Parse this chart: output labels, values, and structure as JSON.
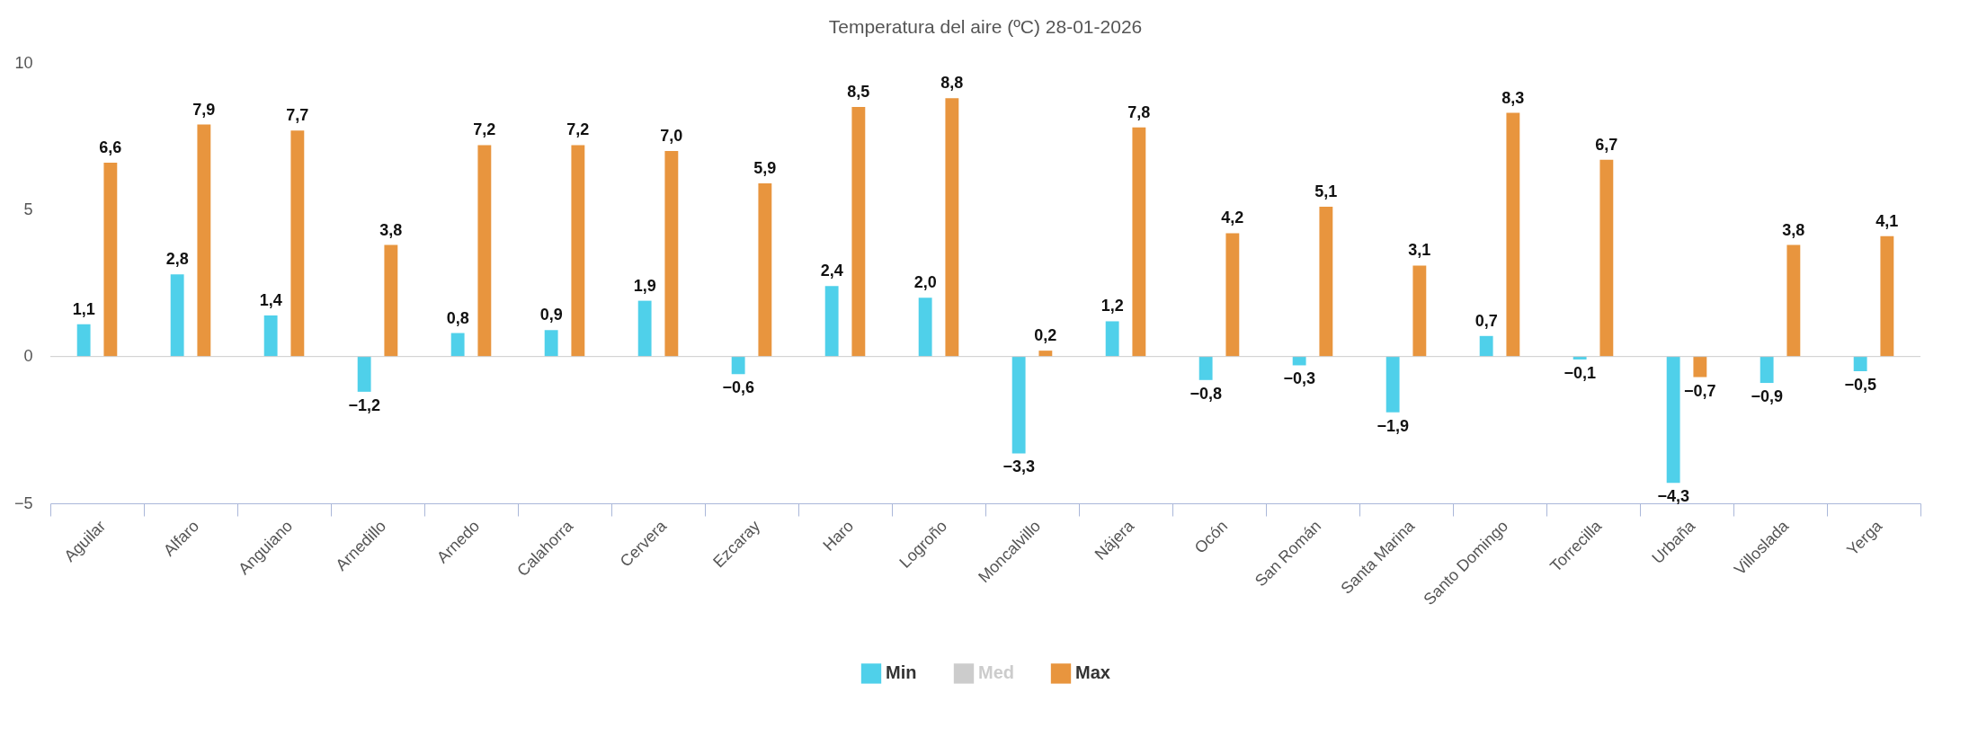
{
  "chart_data": {
    "type": "bar",
    "title": "Temperatura del aire (ºC) 28-01-2026",
    "categories": [
      "Aguilar",
      "Alfaro",
      "Anguiano",
      "Arnedillo",
      "Arnedo",
      "Calahorra",
      "Cervera",
      "Ezcaray",
      "Haro",
      "Logroño",
      "Moncalvillo",
      "Nájera",
      "Ocón",
      "San Román",
      "Santa Marina",
      "Santo Domingo",
      "Torrecilla",
      "Urbaña",
      "Villoslada",
      "Yerga"
    ],
    "series": [
      {
        "name": "Min",
        "color": "#4fd0ea",
        "values": [
          1.1,
          2.8,
          1.4,
          -1.2,
          0.8,
          0.9,
          1.9,
          -0.6,
          2.4,
          2.0,
          -3.3,
          1.2,
          -0.8,
          -0.3,
          -1.9,
          0.7,
          -0.1,
          -4.3,
          -0.9,
          -0.5
        ],
        "value_labels": [
          "1,1",
          "2,8",
          "1,4",
          "−1,2",
          "0,8",
          "0,9",
          "1,9",
          "−0,6",
          "2,4",
          "2,0",
          "−3,3",
          "1,2",
          "−0,8",
          "−0,3",
          "−1,9",
          "0,7",
          "−0,1",
          "−4,3",
          "−0,9",
          "−0,5"
        ]
      },
      {
        "name": "Med",
        "color": "#cccccc",
        "values": [
          null,
          null,
          null,
          null,
          null,
          null,
          null,
          null,
          null,
          null,
          null,
          null,
          null,
          null,
          null,
          null,
          null,
          null,
          null,
          null
        ]
      },
      {
        "name": "Max",
        "color": "#e8953e",
        "values": [
          6.6,
          7.9,
          7.7,
          3.8,
          7.2,
          7.2,
          7.0,
          5.9,
          8.5,
          8.8,
          0.2,
          7.8,
          4.2,
          5.1,
          3.1,
          8.3,
          6.7,
          -0.7,
          3.8,
          4.1
        ],
        "value_labels": [
          "6,6",
          "7,9",
          "7,7",
          "3,8",
          "7,2",
          "7,2",
          "7,0",
          "5,9",
          "8,5",
          "8,8",
          "0,2",
          "7,8",
          "4,2",
          "5,1",
          "3,1",
          "8,3",
          "6,7",
          "−0,7",
          "3,8",
          "4,1"
        ]
      }
    ],
    "ref_lines": [
      {
        "axis": "y",
        "value": 0,
        "color": "#cccccc"
      }
    ],
    "ylim": [
      -5,
      10
    ],
    "yticks": [
      -5,
      0,
      5,
      10
    ],
    "grid": false,
    "legend": "bottom"
  }
}
